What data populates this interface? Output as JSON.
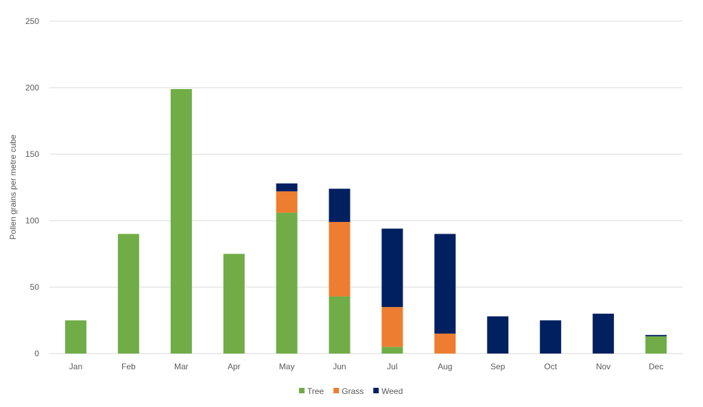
{
  "chart_data": {
    "type": "bar",
    "stacked": true,
    "title": "",
    "xlabel": "",
    "ylabel": "Pollen grains per metre cube",
    "ylim": [
      0,
      250
    ],
    "yticks": [
      0,
      50,
      100,
      150,
      200,
      250
    ],
    "grid": true,
    "legend_position": "bottom",
    "categories": [
      "Jan",
      "Feb",
      "Mar",
      "Apr",
      "May",
      "Jun",
      "Jul",
      "Aug",
      "Sep",
      "Oct",
      "Nov",
      "Dec"
    ],
    "series": [
      {
        "name": "Tree",
        "color": "#70ad47",
        "values": [
          25,
          90,
          199,
          75,
          106,
          43,
          5,
          0,
          0,
          0,
          0,
          13
        ]
      },
      {
        "name": "Grass",
        "color": "#ed7d31",
        "values": [
          0,
          0,
          0,
          0,
          16,
          56,
          30,
          15,
          0,
          0,
          0,
          0
        ]
      },
      {
        "name": "Weed",
        "color": "#002060",
        "values": [
          0,
          0,
          0,
          0,
          6,
          25,
          59,
          75,
          28,
          25,
          30,
          1
        ]
      }
    ]
  }
}
